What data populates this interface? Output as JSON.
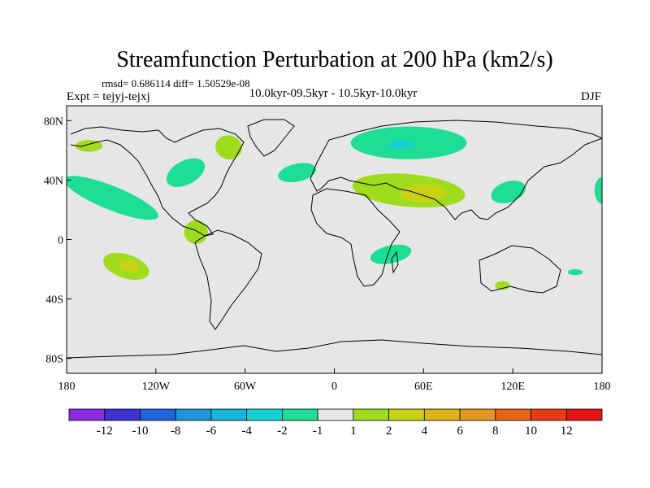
{
  "chart_data": {
    "type": "heatmap",
    "title": "Streamfunction Perturbation at 200 hPa (km2/s)",
    "stats_line": "rmsd= 0.686114 diff= 1.50529e-08",
    "experiment": "Expt = tejyj-tejxj",
    "period": "10.0kyr-09.5kyr - 10.5kyr-10.0kyr",
    "season": "DJF",
    "x_ticks": [
      {
        "lon": -180,
        "label": "180"
      },
      {
        "lon": -120,
        "label": "120W"
      },
      {
        "lon": -60,
        "label": "60W"
      },
      {
        "lon": 0,
        "label": "0"
      },
      {
        "lon": 60,
        "label": "60E"
      },
      {
        "lon": 120,
        "label": "120E"
      },
      {
        "lon": 180,
        "label": "180"
      }
    ],
    "y_ticks": [
      {
        "lat": 80,
        "label": "80N"
      },
      {
        "lat": 40,
        "label": "40N"
      },
      {
        "lat": 0,
        "label": "0"
      },
      {
        "lat": -40,
        "label": "40S"
      },
      {
        "lat": -80,
        "label": "80S"
      }
    ],
    "xlim": [
      -180,
      180
    ],
    "ylim": [
      -90,
      90
    ],
    "colorbar": {
      "colors": [
        "#8c2ae0",
        "#3c32d2",
        "#1e64dc",
        "#1e96dc",
        "#14b4dc",
        "#14d2d2",
        "#1ede96",
        "#e6e6e6",
        "#a0dc1e",
        "#c8d214",
        "#dcb414",
        "#e6961e",
        "#e66414",
        "#e63c14",
        "#e61414"
      ],
      "labels": [
        "-12",
        "-10",
        "-8",
        "-6",
        "-4",
        "-2",
        "-1",
        "1",
        "2",
        "4",
        "6",
        "8",
        "10",
        "12"
      ]
    },
    "anomalies": [
      {
        "name": "n-pacific-west-positive",
        "lon": -165,
        "lat": 63,
        "rx": 9,
        "ry": 4,
        "rot": 0,
        "level": "1"
      },
      {
        "name": "ne-pacific-negative",
        "lon": -150,
        "lat": 28,
        "rx": 34,
        "ry": 8,
        "rot": 22,
        "level": "-1"
      },
      {
        "name": "south-pacific-positive",
        "lon": -140,
        "lat": -18,
        "rx": 16,
        "ry": 8,
        "rot": 18,
        "level": "1"
      },
      {
        "name": "south-pacific-core",
        "lon": -138,
        "lat": -18,
        "rx": 7,
        "ry": 4,
        "rot": 18,
        "level": "2"
      },
      {
        "name": "north-america-negative",
        "lon": -100,
        "lat": 45,
        "rx": 14,
        "ry": 8,
        "rot": -28,
        "level": "-1"
      },
      {
        "name": "central-america-positive",
        "lon": -93,
        "lat": 5,
        "rx": 8,
        "ry": 8,
        "rot": 0,
        "level": "1"
      },
      {
        "name": "hudson-bay-positive",
        "lon": -71,
        "lat": 62,
        "rx": 9,
        "ry": 8,
        "rot": 15,
        "level": "1"
      },
      {
        "name": "north-atlantic-negative",
        "lon": -25,
        "lat": 45,
        "rx": 13,
        "ry": 6,
        "rot": -12,
        "level": "-1"
      },
      {
        "name": "siberia-negative",
        "lon": 50,
        "lat": 65,
        "rx": 39,
        "ry": 11,
        "rot": 0,
        "level": "-1"
      },
      {
        "name": "siberia-core",
        "lon": 45,
        "lat": 64,
        "rx": 9,
        "ry": 3,
        "rot": 0,
        "level": "-2"
      },
      {
        "name": "mideast-positive",
        "lon": 50,
        "lat": 33,
        "rx": 38,
        "ry": 11,
        "rot": 5,
        "level": "1"
      },
      {
        "name": "mideast-core",
        "lon": 60,
        "lat": 31,
        "rx": 16,
        "ry": 6,
        "rot": 0,
        "level": "2"
      },
      {
        "name": "east-africa-negative",
        "lon": 38,
        "lat": -10,
        "rx": 14,
        "ry": 6,
        "rot": -12,
        "level": "-1"
      },
      {
        "name": "east-asia-negative",
        "lon": 117,
        "lat": 32,
        "rx": 12,
        "ry": 7,
        "rot": -18,
        "level": "-1"
      },
      {
        "name": "dateline-negative",
        "lon": 180,
        "lat": 33,
        "rx": 5,
        "ry": 9,
        "rot": 0,
        "level": "-1"
      },
      {
        "name": "australia-positive",
        "lon": 113,
        "lat": -31,
        "rx": 5,
        "ry": 3,
        "rot": 0,
        "level": "1"
      },
      {
        "name": "tasman-negative",
        "lon": 162,
        "lat": -22,
        "rx": 5,
        "ry": 2,
        "rot": 0,
        "level": "-1"
      }
    ]
  }
}
